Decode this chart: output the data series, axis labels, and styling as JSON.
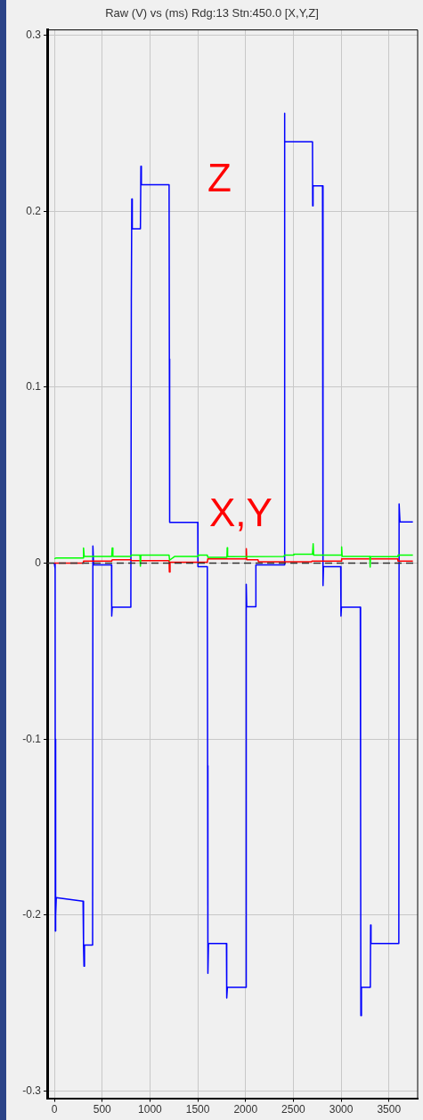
{
  "chart_data": {
    "type": "line",
    "title": "Raw (V) vs (ms) Rdg:13 Stn:450.0 [X,Y,Z]",
    "xlim": [
      -75,
      3800
    ],
    "xticks": [
      0,
      500,
      1000,
      1500,
      2000,
      2500,
      3000,
      3500
    ],
    "ylim": [
      -0.304,
      0.303
    ],
    "yticks": [
      -0.3,
      -0.2,
      -0.1,
      0,
      0.1,
      0.2,
      0.3
    ],
    "grid": true,
    "legend": false,
    "marker": "none",
    "line_style": "solid",
    "series": [
      {
        "color": "#00ff00",
        "x": [
          0,
          20,
          300,
          305,
          312,
          600,
          605,
          612,
          800,
          805,
          895,
          900,
          905,
          1200,
          1205,
          1260,
          1500,
          1505,
          1600,
          1605,
          1805,
          1808,
          1812,
          2400,
          2410,
          2500,
          2505,
          2700,
          2707,
          2712,
          3000,
          3005,
          3010,
          3300,
          3303,
          3307,
          3590,
          3595,
          3750
        ],
        "values": [
          0.0025,
          0.003,
          0.003,
          0.0086,
          0.0039,
          0.0039,
          0.0086,
          0.0039,
          0.0039,
          0.0046,
          0.0046,
          -0.0017,
          0.0046,
          0.0046,
          0.0017,
          0.0039,
          0.0039,
          0.0046,
          0.0046,
          0.0034,
          0.0034,
          0.0088,
          0.0037,
          0.0039,
          0.0046,
          0.0046,
          0.0051,
          0.0051,
          0.011,
          0.0046,
          0.0046,
          0.0093,
          0.0039,
          0.0039,
          -0.0022,
          0.0037,
          0.0037,
          0.0046,
          0.0046
        ]
      },
      {
        "color": "#ff0000",
        "x": [
          0,
          300,
          305,
          600,
          605,
          800,
          805,
          1200,
          1203,
          1210,
          1600,
          1605,
          2005,
          2008,
          2012,
          2130,
          2135,
          2690,
          2695,
          3000,
          3005,
          3590,
          3595,
          3750
        ],
        "values": [
          0,
          0,
          0.0012,
          0.0012,
          0.002,
          0.002,
          0.0015,
          0.0015,
          -0.005,
          0.0005,
          0.0005,
          0.0025,
          0.0025,
          0.0083,
          0.002,
          0.002,
          0.0008,
          0.0008,
          0.0012,
          0.0012,
          0.0025,
          0.0025,
          0.0012,
          0.0012
        ]
      },
      {
        "color": "#0000ff",
        "x": [
          0,
          8,
          10,
          12,
          15,
          20,
          300,
          305,
          310,
          315,
          400,
          403,
          410,
          598,
          600,
          605,
          800,
          805,
          810,
          815,
          900,
          905,
          910,
          1200,
          1203,
          1206,
          1500,
          1502,
          1600,
          1603,
          1606,
          1612,
          1800,
          1803,
          1810,
          2005,
          2007,
          2012,
          2105,
          2108,
          2404,
          2406,
          2412,
          2700,
          2702,
          2706,
          2805,
          2810,
          2815,
          2995,
          2998,
          3003,
          3200,
          3203,
          3206,
          3212,
          3305,
          3308,
          3312,
          3603,
          3606,
          3615,
          3750
        ],
        "values": [
          0,
          -0.003,
          -0.209,
          -0.1,
          -0.2,
          -0.19,
          -0.192,
          -0.217,
          -0.229,
          -0.217,
          -0.217,
          0.0098,
          -0.001,
          -0.001,
          -0.03,
          -0.025,
          -0.025,
          0.149,
          0.207,
          0.19,
          0.19,
          0.2255,
          0.215,
          0.215,
          0.116,
          0.0232,
          0.0232,
          -0.002,
          -0.002,
          -0.115,
          -0.233,
          -0.216,
          -0.216,
          -0.247,
          -0.241,
          -0.241,
          -0.012,
          -0.0247,
          -0.0247,
          -0.001,
          -0.001,
          0.2556,
          0.2395,
          0.2395,
          0.203,
          0.2144,
          0.2144,
          -0.0127,
          -0.002,
          -0.002,
          -0.03,
          -0.025,
          -0.025,
          -0.134,
          -0.257,
          -0.241,
          -0.241,
          -0.2056,
          -0.216,
          -0.216,
          0.0337,
          0.0235,
          0.0235
        ]
      }
    ],
    "ref_lines": [
      {
        "axis": "y",
        "value": 0,
        "color": "#333333",
        "line_style": "dashed"
      }
    ],
    "annotations": [
      "Z",
      "X,Y"
    ]
  }
}
